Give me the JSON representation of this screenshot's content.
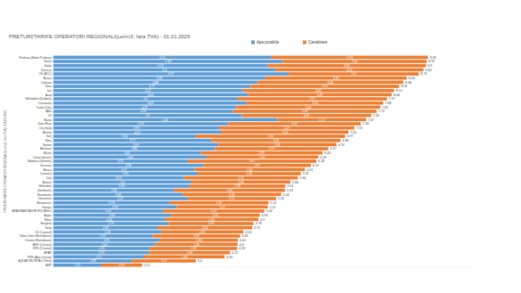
{
  "chart_data": {
    "type": "bar",
    "orientation": "horizontal",
    "stacked": true,
    "title": "PRETURI/TARIFE OPERATORI REGIONALI(Lei/m3, fara TVA) - 01.01.2025",
    "y_label": "PRETURI/TARIFE OPERATORI REGIONALI(Lei/m3, fara TVA) - 01.01.2025",
    "categories": [
      "Prahova (Hidro Prahova)",
      "Vaslui",
      "Galati",
      "Vrancea",
      "Olt (ACC)",
      "Buzau",
      "Calarasi",
      "Timis",
      "Iasi",
      "Arad",
      "Mehedinti (Drobeta)",
      "Constanta",
      "Turda (Cluj)",
      "Alba",
      "Olt",
      "Braila",
      "Satu Mare",
      "Cluj Salaj",
      "Bistrita",
      "Gorj",
      "Sibiu",
      "Neamt",
      "Botosani",
      "Mures",
      "Caras-Severin",
      "Slobozia (Ialomita)",
      "Suceava",
      "Bacau",
      "Covasna",
      "Dolj",
      "Brasov",
      "Mehedinti",
      "Dambovita",
      "Hunedoara",
      "Teleorman",
      "Maramures",
      "Giurgiu",
      "APAGRAM RAJ BORS (Bihor)",
      "Arges",
      "Bihor",
      "Harghita",
      "Salaj",
      "Olt (Caracal)",
      "Valea Jiului (Hunedoara)",
      "Orastie (Hunedoara)",
      "ARS (Crisana)",
      "VRS (Crisana)",
      "APAR",
      "VRS (Apa Lesnita)",
      "AQUATORONTAL (Timis)",
      "ANP"
    ],
    "series": [
      {
        "name": "Apa potabila",
        "color": "#5b9bd5",
        "values": [
          5.21,
          5.48,
          5.12,
          5.3,
          5.62,
          5.06,
          4.88,
          4.71,
          4.52,
          4.65,
          4.4,
          4.63,
          4.37,
          4.29,
          4.5,
          5.35,
          4.18,
          3.96,
          4.02,
          3.41,
          3.77,
          3.95,
          3.86,
          3.52,
          3.66,
          3.21,
          3.58,
          3.37,
          3.45,
          3.12,
          3.3,
          3.26,
          2.89,
          3.09,
          3.21,
          2.78,
          2.95,
          2.62,
          2.81,
          2.66,
          2.75,
          2.49,
          2.58,
          2.37,
          2.55,
          2.44,
          2.31,
          2.29,
          2.17,
          1.89,
          1.15
        ]
      },
      {
        "name": "Canalizare",
        "color": "#ed7d31",
        "values": [
          3.74,
          3.44,
          3.78,
          3.54,
          3.11,
          3.38,
          3.48,
          3.55,
          3.62,
          3.43,
          3.57,
          3.25,
          3.44,
          3.43,
          3.09,
          2.12,
          3.16,
          3.23,
          3.03,
          3.56,
          3.09,
          2.81,
          2.71,
          2.91,
          2.67,
          3.07,
          2.57,
          2.64,
          2.46,
          2.72,
          2.36,
          2.28,
          2.64,
          2.35,
          2.11,
          2.36,
          2.17,
          2.42,
          2.12,
          2.24,
          2.03,
          2.26,
          1.96,
          2.09,
          1.86,
          1.96,
          2.08,
          1.93,
          1.92,
          1.51,
          0.97
        ]
      }
    ],
    "totals": [
      8.95,
      8.92,
      8.9,
      8.84,
      8.73,
      8.44,
      8.36,
      8.26,
      8.14,
      8.08,
      7.97,
      7.88,
      7.81,
      7.72,
      7.59,
      7.47,
      7.34,
      7.19,
      7.05,
      6.97,
      6.86,
      6.76,
      6.57,
      6.43,
      6.33,
      6.28,
      6.15,
      6.01,
      5.91,
      5.84,
      5.66,
      5.54,
      5.53,
      5.44,
      5.32,
      5.14,
      5.12,
      5.04,
      4.93,
      4.9,
      4.78,
      4.75,
      4.54,
      4.46,
      4.41,
      4.4,
      4.39,
      4.22,
      4.09,
      3.4,
      2.12
    ],
    "xlim": [
      0,
      10
    ],
    "data_labels": true,
    "tick_labels": "y",
    "grid": false,
    "legend": "top"
  }
}
